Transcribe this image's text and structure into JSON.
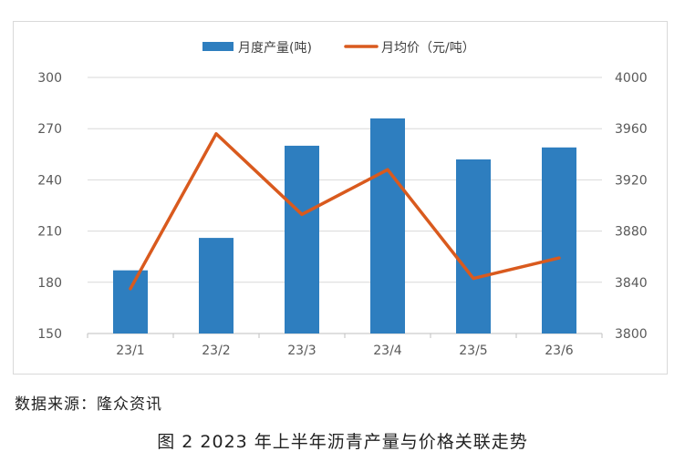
{
  "chart_data": {
    "type": "bar+line",
    "categories": [
      "23/1",
      "23/2",
      "23/3",
      "23/4",
      "23/5",
      "23/6"
    ],
    "series": [
      {
        "name": "月度产量(吨)",
        "kind": "bar",
        "axis": "left",
        "color": "#2e7ebf",
        "values": [
          187,
          206,
          260,
          276,
          252,
          259
        ]
      },
      {
        "name": "月均价（元/吨）",
        "kind": "line",
        "axis": "right",
        "color": "#d95a1e",
        "values": [
          3835,
          3956,
          3893,
          3928,
          3843,
          3859
        ]
      }
    ],
    "y_left": {
      "min": 150,
      "max": 300,
      "ticks": [
        150,
        180,
        210,
        240,
        270,
        300
      ]
    },
    "y_right": {
      "min": 3800,
      "max": 4000,
      "ticks": [
        3800,
        3840,
        3880,
        3920,
        3960,
        4000
      ]
    },
    "grid": "horizontal",
    "legend": "top-center"
  },
  "source": "数据来源：隆众资讯",
  "caption": "图 2  2023 年上半年沥青产量与价格关联走势"
}
